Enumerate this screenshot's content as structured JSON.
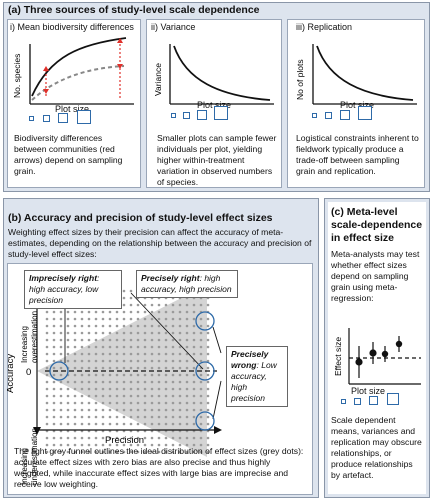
{
  "panel_a": {
    "title": "(a) Three sources of study-level scale dependence",
    "i": {
      "subtitle": "i) Mean biodiversity differences",
      "ylabel": "No. species",
      "xlabel": "Plot size",
      "caption": "Biodiversity differences between communities (red arrows) depend on sampling grain."
    },
    "ii": {
      "subtitle": "ii) Variance",
      "ylabel": "Variance",
      "xlabel": "Plot size",
      "caption": "Smaller plots can sample fewer individuals per plot, yielding higher within-treatment variation in observed numbers of species."
    },
    "iii": {
      "subtitle": "iii) Replication",
      "ylabel": "No of plots",
      "xlabel": "Plot size",
      "caption": "Logistical constraints inherent to fieldwork typically produce a trade-off between sampling grain and replication."
    }
  },
  "panel_b": {
    "title": "(b) Accuracy and precision of study-level effect sizes",
    "intro": "Weighting effect sizes by their precision can affect the accuracy of meta-estimates, depending on the relationship between the accuracy and precision of study-level effect sizes:",
    "callout_imprecise_bold": "Imprecisely right",
    "callout_imprecise_rest": ": high accuracy, low precision",
    "callout_precise_bold": "Precisely right",
    "callout_precise_rest": ": high accuracy, high precision",
    "callout_wrong_bold": "Precisely wrong",
    "callout_wrong_rest": ": Low accuracy, high precision",
    "ylabel": "Accuracy",
    "xlabel": "Precision",
    "over_label": "Increasing overestimation",
    "under_label": "Increasing underestimation",
    "zero_label": "0",
    "caption": "The light grey funnel outlines the ideal distribution of effect sizes (grey dots): accurate effect sizes with zero bias are also precise and thus highly weighted, while inaccurate effect sizes with large bias are imprecise and receive low weighting."
  },
  "panel_c": {
    "title": "(c) Meta-level scale-dependence in effect size",
    "intro": "Meta-analysts may test whether effect sizes depend on sampling grain using meta-regression:",
    "ylabel": "Effect size",
    "xlabel": "Plot size",
    "caption": "Scale dependent means, variances and replication may obscure relationships, or produce relationships by artefact."
  },
  "colors": {
    "panel_bg": "#dde4ee",
    "square_outline": "#2e6aa8",
    "red": "#e0302a",
    "funnel": "#d4d4d4"
  }
}
